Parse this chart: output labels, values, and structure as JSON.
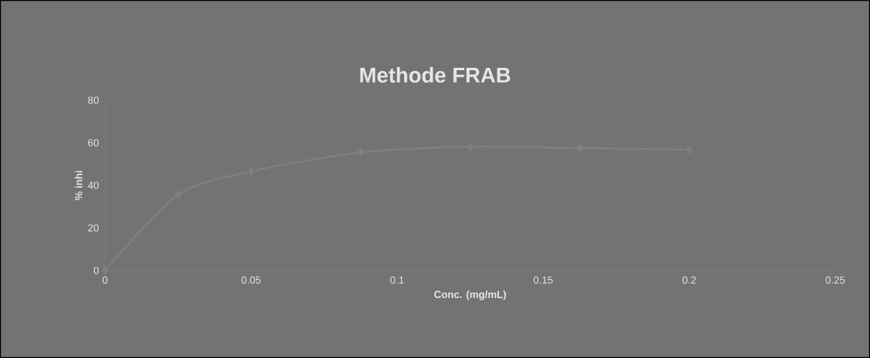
{
  "chart_data": {
    "type": "line",
    "title": "Methode FRAB",
    "xlabel": "Conc. (mg/mL)",
    "ylabel": "% inhi",
    "x": [
      0,
      0.025,
      0.05,
      0.0875,
      0.125,
      0.1625,
      0.2
    ],
    "series": [
      {
        "color": "#808080",
        "values": [
          0,
          35.4,
          46.5,
          55.4,
          58.1,
          57.5,
          56.7
        ]
      }
    ],
    "xlim": [
      0,
      0.25
    ],
    "xticks": [
      0,
      0.05,
      0.1,
      0.15,
      0.2,
      0.25
    ],
    "ylim": [
      0,
      80
    ],
    "yticks": [
      0,
      20,
      40,
      60,
      80
    ],
    "grid": false,
    "marker": "diamond",
    "line_style": "solid"
  }
}
